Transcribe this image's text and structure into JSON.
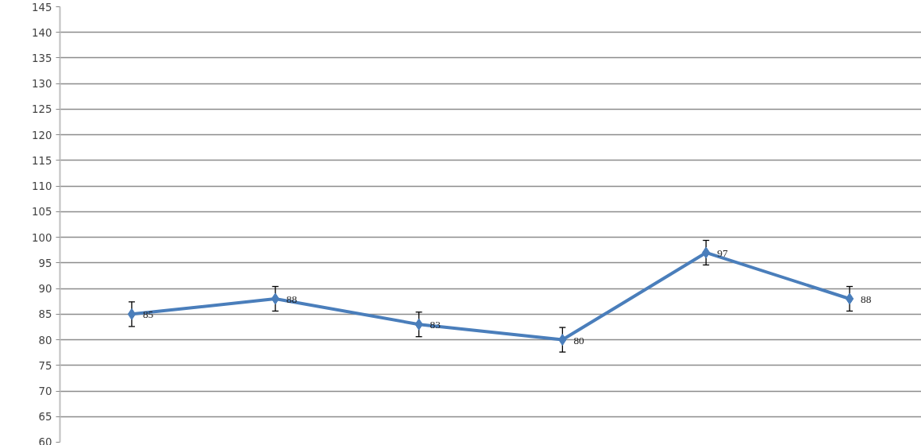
{
  "chart_data": {
    "type": "line",
    "categories": [
      null,
      null,
      null,
      null,
      null,
      null
    ],
    "series": [
      {
        "color": "#4a7ebb",
        "values": [
          85,
          88,
          83,
          80,
          97,
          88
        ],
        "errors": [
          2.4,
          2.4,
          2.4,
          2.4,
          2.4,
          2.4
        ]
      }
    ],
    "ylim": [
      60,
      145
    ],
    "yticks": [
      60,
      65,
      70,
      75,
      80,
      85,
      90,
      95,
      100,
      105,
      110,
      115,
      120,
      125,
      130,
      135,
      140,
      145
    ],
    "grid": "y",
    "marker": "diamond",
    "line_style": "solid",
    "data_labels": true,
    "tick_labels": "y"
  }
}
